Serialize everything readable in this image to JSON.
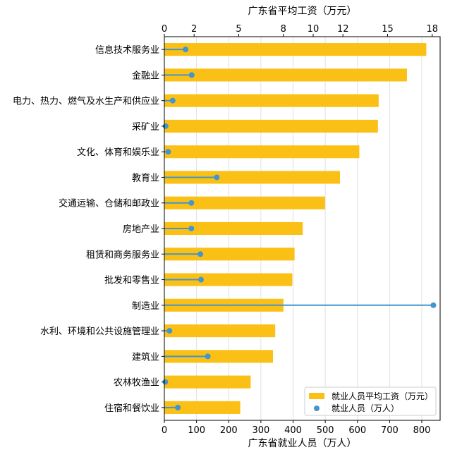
{
  "chart_data": {
    "type": "bar",
    "categories": [
      "信息技术服务业",
      "金融业",
      "电力、热力、燃气及水生产和供应业",
      "采矿业",
      "文化、体育和娱乐业",
      "教育业",
      "交通运输、仓储和邮政业",
      "房地产业",
      "租赁和商务服务业",
      "批发和零售业",
      "制造业",
      "水利、环境和公共设施管理业",
      "建筑业",
      "农林牧渔业",
      "住宿和餐饮业"
    ],
    "series": [
      {
        "name": "就业人员平均工资（万元）",
        "type": "bar",
        "axis": "top",
        "color": "#fbc015",
        "values": [
          17.6,
          16.3,
          14.4,
          14.35,
          13.1,
          11.8,
          10.8,
          9.3,
          8.75,
          8.6,
          8.0,
          7.45,
          7.3,
          5.8,
          5.1
        ]
      },
      {
        "name": "就业人员（万人）",
        "type": "lollipop",
        "axis": "bottom",
        "color": "#4295cf",
        "values": [
          66,
          85,
          26,
          4,
          12,
          163,
          84,
          84,
          112,
          114,
          836,
          16,
          135,
          3,
          42
        ]
      }
    ],
    "top_axis": {
      "label": "广东省平均工资（万元）",
      "ticks": [
        0,
        2,
        5,
        8,
        10,
        12,
        15,
        18
      ],
      "range": [
        0,
        18.53
      ]
    },
    "bottom_axis": {
      "label": "广东省就业人员（万人）",
      "ticks": [
        0,
        100,
        200,
        300,
        400,
        500,
        600,
        700,
        800
      ],
      "range": [
        0,
        857
      ]
    },
    "grid": "vertical",
    "legend_position": "lower-right"
  }
}
